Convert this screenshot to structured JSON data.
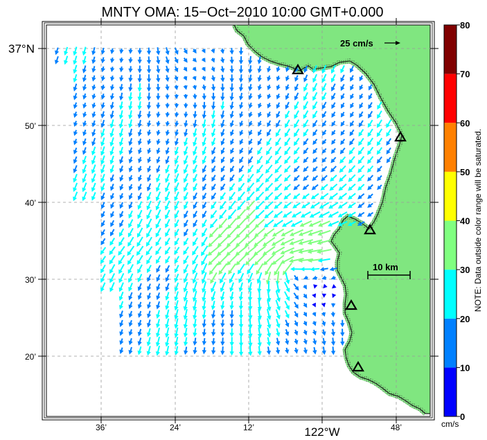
{
  "title": "MNTY OMA: 15−Oct−2010 10:00 GMT+0.000",
  "lat_labels": [
    {
      "label": "37°N"
    },
    {
      "label": "50’"
    },
    {
      "label": "40’"
    },
    {
      "label": "30’"
    },
    {
      "label": "20’"
    }
  ],
  "lon_labels": [
    {
      "label": "36’"
    },
    {
      "label": "24’"
    },
    {
      "label": "12’"
    },
    {
      "label": "122°W"
    },
    {
      "label": "48’"
    }
  ],
  "reference_arrow": {
    "label": "25 cm/s",
    "speed": 25
  },
  "scale_bar": {
    "label": "10 km"
  },
  "colorbar": {
    "ticks": [
      "0",
      "10",
      "20",
      "30",
      "40",
      "50",
      "60",
      "70",
      "80"
    ],
    "unit": "cm/s",
    "note": "NOTE: Data outside color range will be saturated.",
    "colors": [
      "#0000ff",
      "#0080ff",
      "#00ffff",
      "#80ff80",
      "#ffff00",
      "#ff8000",
      "#ff0000",
      "#800000"
    ]
  },
  "colors": {
    "land": "#80e680",
    "coast": "#222222",
    "grid": "#999999"
  },
  "stations": [
    "triangle-icon",
    "triangle-icon",
    "triangle-icon",
    "triangle-icon",
    "triangle-icon"
  ]
}
